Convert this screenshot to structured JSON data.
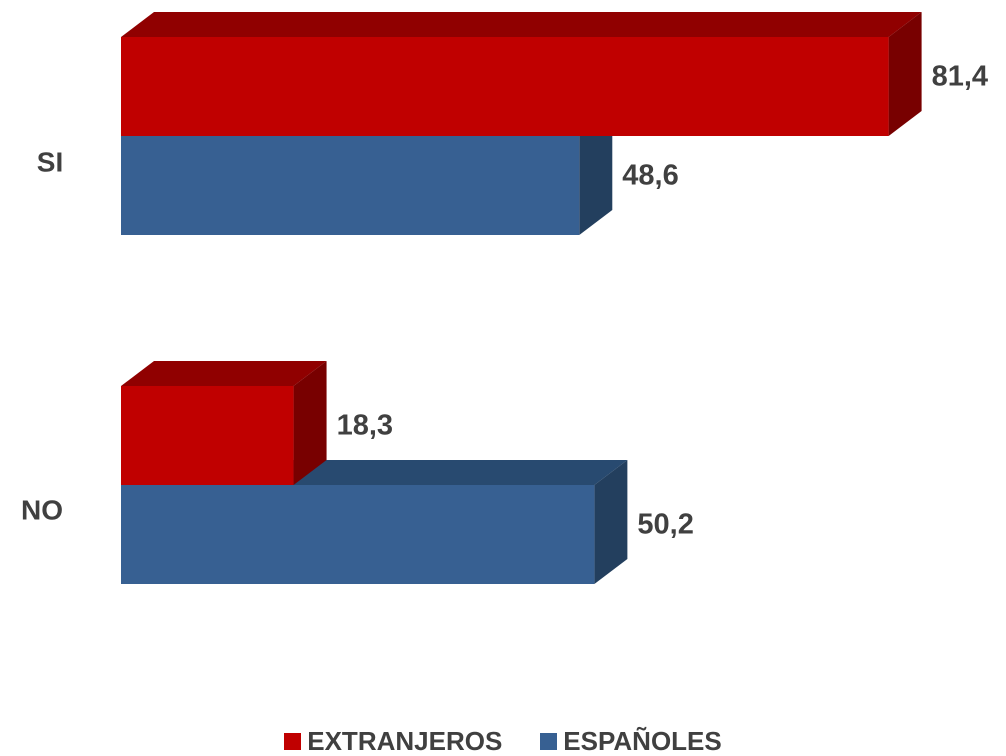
{
  "chart_data": {
    "type": "bar",
    "orientation": "horizontal",
    "style": "3d",
    "categories": [
      "SI",
      "NO"
    ],
    "series": [
      {
        "name": "EXTRANJEROS",
        "values": [
          81.4,
          18.3
        ],
        "labels": [
          "81,4",
          "18,3"
        ],
        "color": "#c00000",
        "top_color": "#900000",
        "side_color": "#780000"
      },
      {
        "name": "ESPAÑOLES",
        "values": [
          48.6,
          50.2
        ],
        "labels": [
          "48,6",
          "50,2"
        ],
        "color": "#376092",
        "top_color": "#284a70",
        "side_color": "#233f5e"
      }
    ],
    "xlim": [
      0,
      85
    ],
    "grid": false,
    "legend_position": "bottom"
  }
}
